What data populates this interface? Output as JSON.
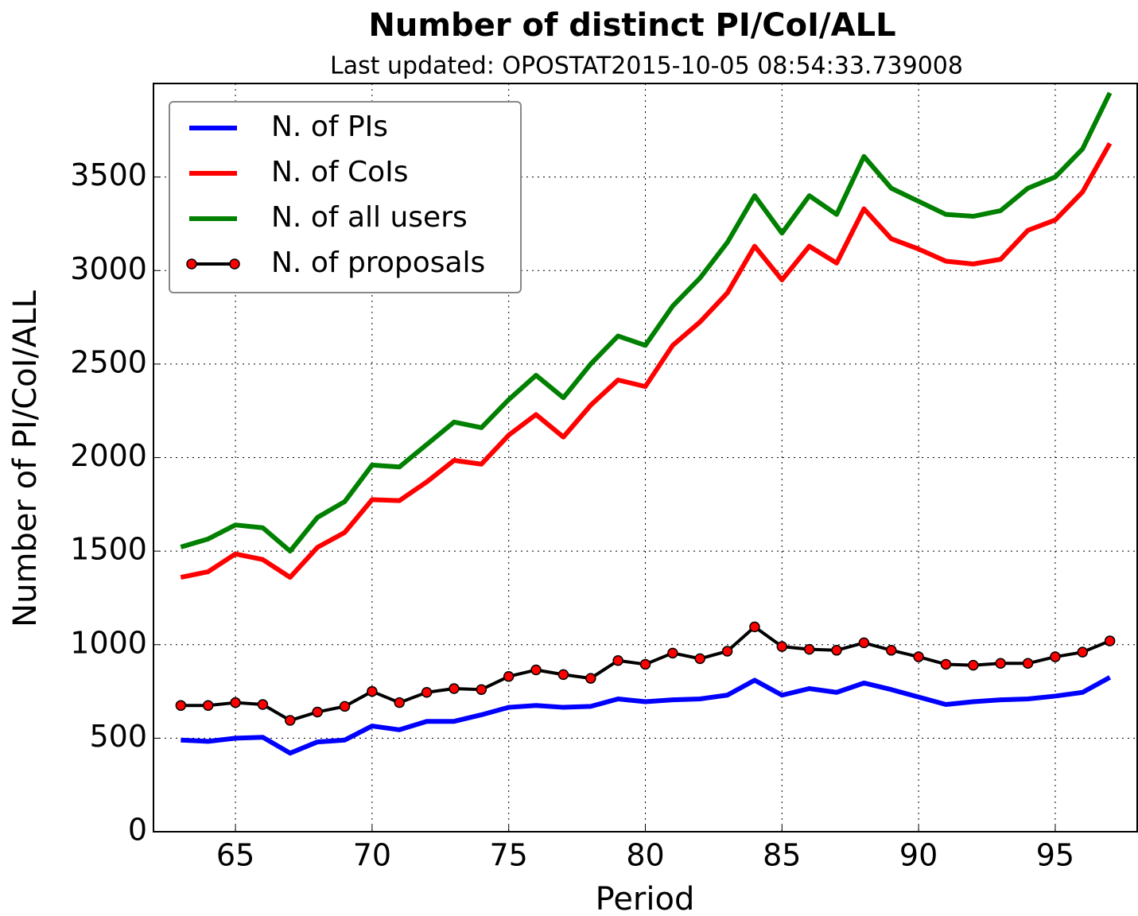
{
  "chart_data": {
    "type": "line",
    "title": "Number of distinct PI/CoI/ALL",
    "subtitle": "Last updated: OPOSTAT2015-10-05 08:54:33.739008",
    "xlabel": "Period",
    "ylabel": "Number of PI/CoI/ALL",
    "x": [
      63,
      64,
      65,
      66,
      67,
      68,
      69,
      70,
      71,
      72,
      73,
      74,
      75,
      76,
      77,
      78,
      79,
      80,
      81,
      82,
      83,
      84,
      85,
      86,
      87,
      88,
      89,
      90,
      91,
      92,
      93,
      94,
      95,
      96,
      97
    ],
    "series": [
      {
        "name": "N. of PIs",
        "color": "#0000ff",
        "values": [
          490,
          483,
          500,
          505,
          420,
          480,
          490,
          565,
          545,
          590,
          590,
          625,
          665,
          675,
          665,
          670,
          710,
          695,
          705,
          710,
          730,
          810,
          730,
          765,
          745,
          795,
          760,
          720,
          680,
          695,
          705,
          710,
          725,
          745,
          825
        ]
      },
      {
        "name": "N. of CoIs",
        "color": "#ff0000",
        "values": [
          1360,
          1390,
          1485,
          1455,
          1360,
          1520,
          1600,
          1775,
          1770,
          1870,
          1985,
          1965,
          2120,
          2230,
          2110,
          2280,
          2415,
          2380,
          2600,
          2725,
          2880,
          3130,
          2950,
          3130,
          3040,
          3330,
          3170,
          3115,
          3050,
          3035,
          3060,
          3215,
          3270,
          3420,
          3680
        ]
      },
      {
        "name": "N. of all users",
        "color": "#008000",
        "values": [
          1522,
          1565,
          1640,
          1625,
          1500,
          1680,
          1765,
          1960,
          1950,
          2070,
          2190,
          2160,
          2310,
          2440,
          2320,
          2500,
          2650,
          2600,
          2810,
          2960,
          3150,
          3400,
          3200,
          3400,
          3300,
          3610,
          3440,
          3370,
          3300,
          3290,
          3320,
          3440,
          3500,
          3650,
          3950
        ]
      },
      {
        "name": "N. of proposals",
        "color": "#000000",
        "marker_color": "#ff0000",
        "values": [
          675,
          675,
          690,
          680,
          595,
          640,
          670,
          750,
          690,
          745,
          765,
          760,
          830,
          865,
          840,
          820,
          915,
          895,
          955,
          925,
          965,
          1095,
          990,
          975,
          970,
          1010,
          970,
          935,
          895,
          890,
          900,
          900,
          935,
          960,
          1020
        ]
      }
    ],
    "xlim": [
      62,
      98
    ],
    "xticks": [
      65,
      70,
      75,
      80,
      85,
      90,
      95
    ],
    "ylim": [
      0,
      4000
    ],
    "yticks": [
      0,
      500,
      1000,
      1500,
      2000,
      2500,
      3000,
      3500
    ],
    "grid": true,
    "legend": "upper left"
  }
}
